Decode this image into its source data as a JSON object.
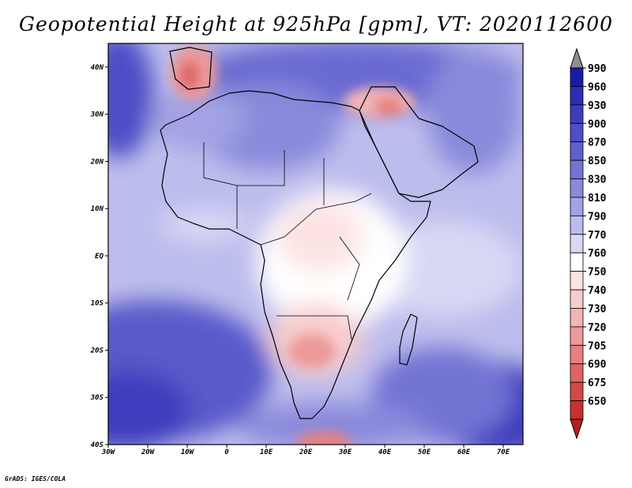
{
  "title": "Geopotential Height at 925hPa [gpm], VT: 2020112600",
  "credit": "GrADS: IGES/COLA",
  "map": {
    "projection": "lat-lon",
    "lon_range": [
      -30,
      75
    ],
    "lat_range": [
      -40,
      45
    ],
    "lon_ticks": [
      {
        "value": -30,
        "label": "30W"
      },
      {
        "value": -20,
        "label": "20W"
      },
      {
        "value": -10,
        "label": "10W"
      },
      {
        "value": 0,
        "label": "0"
      },
      {
        "value": 10,
        "label": "10E"
      },
      {
        "value": 20,
        "label": "20E"
      },
      {
        "value": 30,
        "label": "30E"
      },
      {
        "value": 40,
        "label": "40E"
      },
      {
        "value": 50,
        "label": "50E"
      },
      {
        "value": 60,
        "label": "60E"
      },
      {
        "value": 70,
        "label": "70E"
      }
    ],
    "lat_ticks": [
      {
        "value": 40,
        "label": "40N"
      },
      {
        "value": 30,
        "label": "30N"
      },
      {
        "value": 20,
        "label": "20N"
      },
      {
        "value": 10,
        "label": "10N"
      },
      {
        "value": 0,
        "label": "EQ"
      },
      {
        "value": -10,
        "label": "10S"
      },
      {
        "value": -20,
        "label": "20S"
      },
      {
        "value": -30,
        "label": "30S"
      },
      {
        "value": -40,
        "label": "40S"
      }
    ]
  },
  "colorbar": {
    "levels": [
      {
        "label": "990",
        "color": "#1a1aa8"
      },
      {
        "label": "960",
        "color": "#2c2cb4"
      },
      {
        "label": "930",
        "color": "#3d3dbd"
      },
      {
        "label": "900",
        "color": "#4e4ec6"
      },
      {
        "label": "870",
        "color": "#5f5fcd"
      },
      {
        "label": "850",
        "color": "#7373d4"
      },
      {
        "label": "830",
        "color": "#8a8adc"
      },
      {
        "label": "810",
        "color": "#a2a2e4"
      },
      {
        "label": "790",
        "color": "#bcbcec"
      },
      {
        "label": "770",
        "color": "#d8d8f5"
      },
      {
        "label": "760",
        "color": "#ffffff"
      },
      {
        "label": "750",
        "color": "#fde3e3"
      },
      {
        "label": "740",
        "color": "#f8cccc"
      },
      {
        "label": "730",
        "color": "#f3b4b4"
      },
      {
        "label": "720",
        "color": "#ec9a9a"
      },
      {
        "label": "705",
        "color": "#e58080"
      },
      {
        "label": "690",
        "color": "#dd6464"
      },
      {
        "label": "675",
        "color": "#d44848"
      },
      {
        "label": "650",
        "color": "#c93030"
      }
    ],
    "over_color": "#8f8f8f",
    "under_color": "#b81e1e"
  }
}
